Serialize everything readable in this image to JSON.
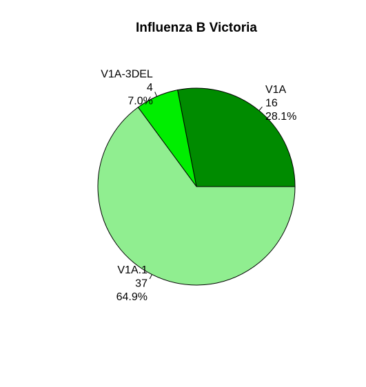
{
  "chart_data": {
    "type": "pie",
    "title": "Influenza B Victoria",
    "slices": [
      {
        "label": "V1A",
        "count": "16",
        "percent": "28.1%",
        "value": 16,
        "color": "#008B00"
      },
      {
        "label": "V1A-3DEL",
        "count": "4",
        "percent": "7.0%",
        "value": 4,
        "color": "#00EE00"
      },
      {
        "label": "V1A.1",
        "count": "37",
        "percent": "64.9%",
        "value": 37,
        "color": "#90EE90"
      }
    ],
    "direction": "counterclockwise",
    "start": "3 o'clock",
    "legend": "none"
  }
}
